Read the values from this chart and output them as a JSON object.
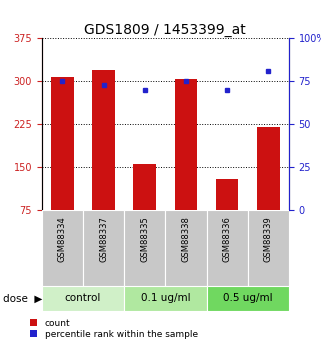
{
  "title": "GDS1809 / 1453399_at",
  "samples": [
    "GSM88334",
    "GSM88337",
    "GSM88335",
    "GSM88338",
    "GSM88336",
    "GSM88339"
  ],
  "groups": [
    "control",
    "control",
    "0.1 ug/ml",
    "0.1 ug/ml",
    "0.5 ug/ml",
    "0.5 ug/ml"
  ],
  "bar_values": [
    307,
    320,
    155,
    303,
    130,
    220
  ],
  "dot_values": [
    75,
    73,
    70,
    75,
    70,
    81
  ],
  "ylim_left": [
    75,
    375
  ],
  "ylim_right": [
    0,
    100
  ],
  "yticks_left": [
    75,
    150,
    225,
    300,
    375
  ],
  "yticks_right": [
    0,
    25,
    50,
    75,
    100
  ],
  "bar_color": "#cc1111",
  "dot_color": "#2222cc",
  "left_axis_color": "#cc2222",
  "right_axis_color": "#2222cc",
  "sample_box_color": "#c8c8c8",
  "group_colors": {
    "control": "#d0f0c8",
    "0.1 ug/ml": "#b0e8a0",
    "0.5 ug/ml": "#70d860"
  },
  "group_spans": {
    "control": [
      0,
      2
    ],
    "0.1 ug/ml": [
      2,
      4
    ],
    "0.5 ug/ml": [
      4,
      6
    ]
  },
  "legend_count": "count",
  "legend_pct": "percentile rank within the sample",
  "title_fontsize": 10,
  "tick_fontsize": 7,
  "sample_fontsize": 6,
  "dose_fontsize": 7.5,
  "legend_fontsize": 6.5
}
